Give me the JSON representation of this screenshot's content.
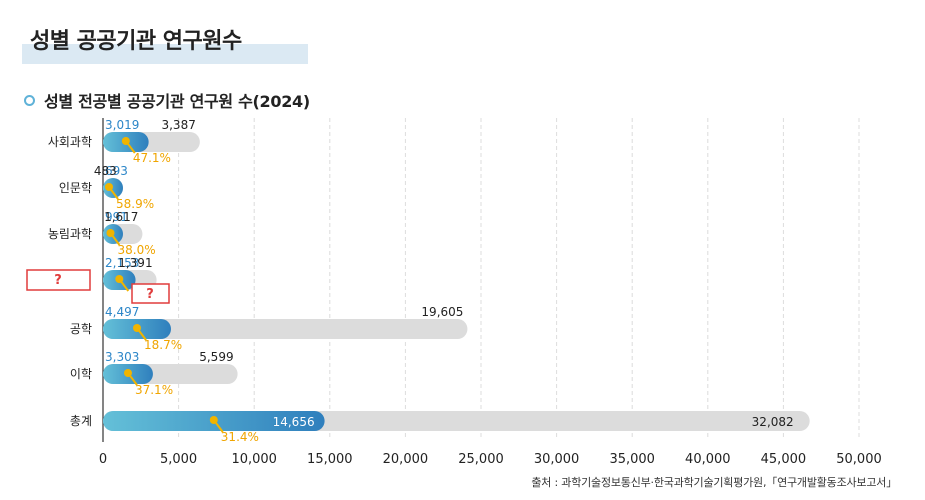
{
  "page": {
    "title": "성별 공공기관 연구원수",
    "subtitle": "성별 전공별 공공기관 연구원 수(2024)",
    "source": "출처 : 과학기술정보통신부·한국과학기술기획평가원,「연구개발활동조사보고서」"
  },
  "chart_data": {
    "type": "bar",
    "orientation": "horizontal",
    "stacked": true,
    "categories": [
      "사회과학",
      "인문학",
      "농림과학",
      "?",
      "공학",
      "이학",
      "총계"
    ],
    "series": [
      {
        "values": [
          3019,
          693,
          991,
          2153,
          4497,
          3303,
          14656
        ],
        "color": "#3e94c8"
      },
      {
        "values": [
          3387,
          483,
          1617,
          1391,
          19605,
          5599,
          32082
        ],
        "color": "#dcdcdc"
      }
    ],
    "share_labels": [
      "47.1%",
      "58.9%",
      "38.0%",
      "?",
      "18.7%",
      "37.1%",
      "31.4%"
    ],
    "marker_color": "#f0b400",
    "xlim": [
      0,
      50000
    ],
    "xticks": [
      0,
      5000,
      10000,
      15000,
      20000,
      25000,
      30000,
      35000,
      40000,
      45000,
      50000
    ],
    "xtick_labels": [
      "0",
      "5,000",
      "10,000",
      "15,000",
      "20,000",
      "25,000",
      "30,000",
      "35,000",
      "40,000",
      "45,000",
      "50,000"
    ],
    "grid": "vertical-dashed",
    "unknown_marker": "?"
  }
}
